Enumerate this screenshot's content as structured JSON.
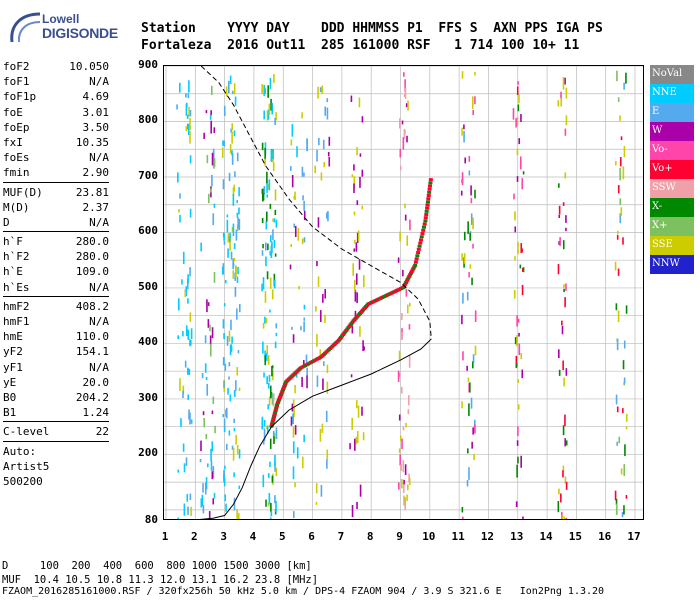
{
  "logo": {
    "top": "Lowell",
    "main": "DIGISONDE"
  },
  "header": {
    "line1": "Station    YYYY DAY    DDD HHMMSS P1  FFS S  AXN PPS IGA PS",
    "line2": "Fortaleza  2016 Out11  285 161000 RSF   1 714 100 10+ 11"
  },
  "params": [
    {
      "label": "foF2",
      "value": "10.050"
    },
    {
      "label": "foF1",
      "value": "N/A"
    },
    {
      "label": "foF1p",
      "value": "4.69"
    },
    {
      "label": "foE",
      "value": "3.01"
    },
    {
      "label": "foEp",
      "value": "3.50"
    },
    {
      "label": "fxI",
      "value": "10.35"
    },
    {
      "label": "foEs",
      "value": "N/A"
    },
    {
      "label": "fmin",
      "value": "2.90"
    },
    {
      "label": "MUF(D)",
      "value": "23.81"
    },
    {
      "label": "M(D)",
      "value": "2.37"
    },
    {
      "label": "D",
      "value": "N/A"
    },
    {
      "label": "h`F",
      "value": "280.0"
    },
    {
      "label": "h`F2",
      "value": "280.0"
    },
    {
      "label": "h`E",
      "value": "109.0"
    },
    {
      "label": "h`Es",
      "value": "N/A"
    },
    {
      "label": "hmF2",
      "value": "408.2"
    },
    {
      "label": "hmF1",
      "value": "N/A"
    },
    {
      "label": "hmE",
      "value": "110.0"
    },
    {
      "label": "yF2",
      "value": "154.1"
    },
    {
      "label": "yF1",
      "value": "N/A"
    },
    {
      "label": "yE",
      "value": "20.0"
    },
    {
      "label": "B0",
      "value": "204.2"
    },
    {
      "label": "B1",
      "value": "1.24"
    },
    {
      "label": "C-level",
      "value": "22"
    }
  ],
  "auto": [
    "Auto:",
    "Artist5",
    "500200"
  ],
  "legend": [
    {
      "label": "NoVal",
      "color": "#888888"
    },
    {
      "label": "NNE",
      "color": "#00ccff"
    },
    {
      "label": "E",
      "color": "#55aaee"
    },
    {
      "label": "W",
      "color": "#aa00aa"
    },
    {
      "label": "Vo-",
      "color": "#ff44aa"
    },
    {
      "label": "Vo+",
      "color": "#ff0033"
    },
    {
      "label": "SSW",
      "color": "#f0a0a8"
    },
    {
      "label": "X-",
      "color": "#008800"
    },
    {
      "label": "X+",
      "color": "#7cc060"
    },
    {
      "label": "SSE",
      "color": "#cccc00"
    },
    {
      "label": "NNW",
      "color": "#2222cc"
    }
  ],
  "footer": {
    "line1": "D     100  200  400  600  800 1000 1500 3000 [km]",
    "line2": "MUF  10.4 10.5 10.8 11.3 12.0 13.1 16.2 23.8 [MHz]",
    "line3": "FZAOM_2016285161000.RSF / 320fx256h 50 kHz 5.0 km / DPS-4 FZAOM 904 / 3.9 S 321.6 E   Ion2Png 1.3.20"
  },
  "chart_data": {
    "type": "scatter",
    "title": "",
    "xlabel": "",
    "ylabel": "",
    "xlim": [
      1,
      17
    ],
    "ylim": [
      80,
      900
    ],
    "xticks": [
      "1",
      "2",
      "3",
      "4",
      "5",
      "6",
      "7",
      "8",
      "9",
      "10",
      "11",
      "12",
      "13",
      "14",
      "15",
      "16",
      "17"
    ],
    "yticks": [
      "80",
      "200",
      "300",
      "400",
      "500",
      "600",
      "700",
      "800",
      "900"
    ],
    "grid": true,
    "series": [
      {
        "style": "solid",
        "points": [
          [
            1,
            80
          ],
          [
            2,
            82
          ],
          [
            2.6,
            85
          ],
          [
            3,
            90
          ],
          [
            3.3,
            110
          ],
          [
            3.6,
            140
          ],
          [
            3.9,
            180
          ],
          [
            4.2,
            215
          ],
          [
            4.6,
            250
          ],
          [
            5.2,
            280
          ],
          [
            6,
            305
          ],
          [
            7,
            325
          ],
          [
            8,
            345
          ],
          [
            9,
            370
          ],
          [
            9.7,
            390
          ],
          [
            10.05,
            408
          ]
        ]
      },
      {
        "style": "dashed",
        "points": [
          [
            2.2,
            900
          ],
          [
            2.8,
            870
          ],
          [
            3.3,
            830
          ],
          [
            3.8,
            780
          ],
          [
            4.4,
            720
          ],
          [
            5.2,
            660
          ],
          [
            6,
            610
          ],
          [
            7,
            570
          ],
          [
            8,
            540
          ],
          [
            9,
            510
          ],
          [
            9.6,
            480
          ],
          [
            10,
            440
          ],
          [
            10.05,
            408
          ]
        ]
      },
      {
        "style": "trace",
        "points": [
          [
            4.6,
            250
          ],
          [
            4.8,
            290
          ],
          [
            5.1,
            330
          ],
          [
            5.6,
            355
          ],
          [
            6.3,
            375
          ],
          [
            6.9,
            405
          ],
          [
            7.4,
            440
          ],
          [
            7.9,
            470
          ],
          [
            8.5,
            485
          ],
          [
            9.1,
            500
          ],
          [
            9.5,
            540
          ],
          [
            9.85,
            620
          ],
          [
            10.05,
            700
          ]
        ]
      }
    ]
  }
}
